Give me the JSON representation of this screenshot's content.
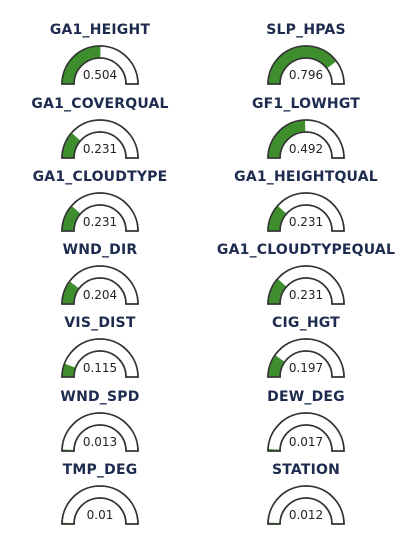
{
  "accent_fill": "#3e8e2e",
  "gauges": [
    {
      "label": "GA1_HEIGHT",
      "value": 0.504,
      "value_text": "0.504"
    },
    {
      "label": "SLP_HPAS",
      "value": 0.796,
      "value_text": "0.796"
    },
    {
      "label": "GA1_COVERQUAL",
      "value": 0.231,
      "value_text": "0.231"
    },
    {
      "label": "GF1_LOWHGT",
      "value": 0.492,
      "value_text": "0.492"
    },
    {
      "label": "GA1_CLOUDTYPE",
      "value": 0.231,
      "value_text": "0.231"
    },
    {
      "label": "GA1_HEIGHTQUAL",
      "value": 0.231,
      "value_text": "0.231"
    },
    {
      "label": "WND_DIR",
      "value": 0.204,
      "value_text": "0.204"
    },
    {
      "label": "GA1_CLOUDTYPEQUAL",
      "value": 0.231,
      "value_text": "0.231"
    },
    {
      "label": "VIS_DIST",
      "value": 0.115,
      "value_text": "0.115"
    },
    {
      "label": "CIG_HGT",
      "value": 0.197,
      "value_text": "0.197"
    },
    {
      "label": "WND_SPD",
      "value": 0.013,
      "value_text": "0.013"
    },
    {
      "label": "DEW_DEG",
      "value": 0.017,
      "value_text": "0.017"
    },
    {
      "label": "TMP_DEG",
      "value": 0.01,
      "value_text": "0.01"
    },
    {
      "label": "STATION",
      "value": 0.012,
      "value_text": "0.012"
    }
  ]
}
